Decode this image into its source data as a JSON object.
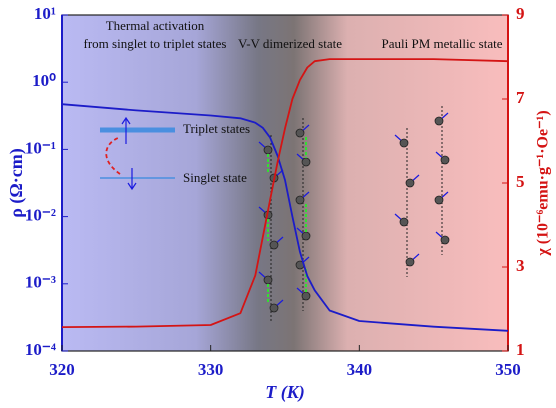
{
  "chart_data": {
    "type": "line",
    "xlabel": "T (K)",
    "ylabel": "ρ (Ω·cm)",
    "y2label": "χ (10⁻⁶emu·g⁻¹·Oe⁻¹)",
    "annotations": [
      "Thermal activation",
      "from singlet to triplet states",
      "V-V dimerized state",
      "Pauli PM metallic state",
      "Triplet states",
      "Singlet state"
    ],
    "x": [
      320,
      325,
      330,
      332,
      333,
      333.5,
      334,
      334.5,
      335,
      335.5,
      336,
      336.5,
      337,
      338,
      340,
      345,
      350
    ],
    "series": [
      {
        "color": "#1c1cc8",
        "values": [
          0.47,
          0.38,
          0.32,
          0.29,
          0.25,
          0.21,
          0.15,
          0.08,
          0.035,
          0.01,
          0.003,
          0.0013,
          0.0008,
          0.0004,
          0.00028,
          0.00023,
          0.0002
        ]
      },
      {
        "color": "#d41414",
        "axis": "y2",
        "values": [
          1.57,
          1.58,
          1.62,
          1.9,
          2.8,
          3.7,
          4.6,
          5.5,
          6.3,
          7.0,
          7.45,
          7.75,
          7.9,
          7.95,
          7.95,
          7.95,
          7.9
        ]
      }
    ],
    "xlim": [
      320,
      350
    ],
    "xticks": [
      320,
      330,
      340,
      350
    ],
    "ylim": [
      0.0001,
      10
    ],
    "ylog": true,
    "yticks": [
      {
        "value": 0.0001,
        "label": "10⁻⁴"
      },
      {
        "value": 0.001,
        "label": "10⁻³"
      },
      {
        "value": 0.01,
        "label": "10⁻²"
      },
      {
        "value": 0.1,
        "label": "10⁻¹"
      },
      {
        "value": 1,
        "label": "10⁰"
      },
      {
        "value": 10,
        "label": "10¹"
      }
    ],
    "y2lim": [
      1,
      9
    ],
    "y2ticks": [
      1,
      3,
      5,
      7,
      9
    ],
    "ycolor": "#1c1cc8",
    "y2color": "#d41414",
    "grid": false
  }
}
